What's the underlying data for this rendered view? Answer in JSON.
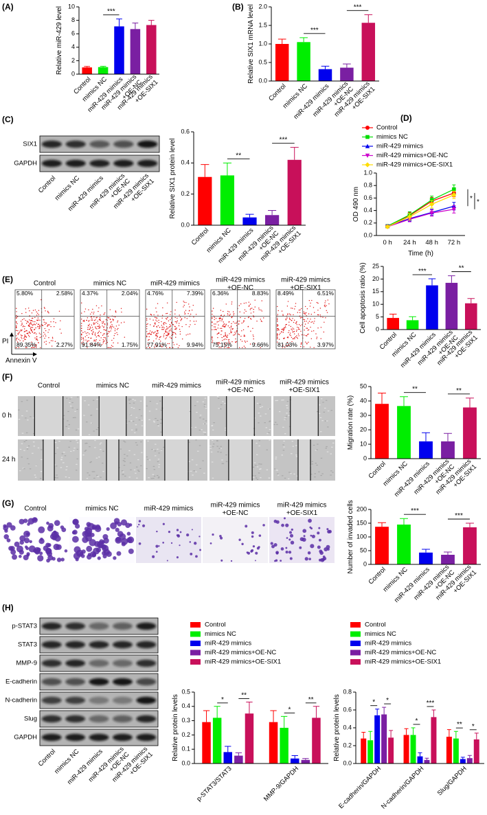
{
  "figure": {
    "panels": [
      "(A)",
      "(B)",
      "(C)",
      "(D)",
      "(E)",
      "(F)",
      "(G)",
      "(H)"
    ],
    "blot_c": {
      "rows": [
        "SIX1",
        "GAPDH"
      ],
      "lanes": [
        "Control",
        "mimics NC",
        "miR-429 mimics",
        "miR-429 mimics\n+OE-NC",
        "miR-429 mimics\n+OE-SIX1"
      ]
    },
    "flow": {
      "titles": [
        "Control",
        "mimics NC",
        "miR-429 mimics",
        "miR-429 mimics\n+OE-NC",
        "miR-429 mimics\n+OE-SIX1"
      ],
      "quadrants": [
        [
          "5.80%",
          "2.58%",
          "89.35%",
          "2.27%"
        ],
        [
          "4.37%",
          "2.04%",
          "91.84%",
          "1.75%"
        ],
        [
          "4.76%",
          "7.39%",
          "77.91%",
          "9.94%"
        ],
        [
          "6.36%",
          "8.83%",
          "75.15%",
          "9.66%"
        ],
        [
          "8.49%",
          "6.51%",
          "81.03%",
          "3.97%"
        ]
      ],
      "y_label": "PI",
      "x_label": "Annexin V"
    },
    "scratch": {
      "titles": [
        "Control",
        "mimics NC",
        "miR-429 mimics",
        "miR-429 mimics\n+OE-NC",
        "miR-429 mimics\n+OE-SIX1"
      ],
      "rows": [
        "0 h",
        "24 h"
      ]
    },
    "transwell": {
      "titles": [
        "Control",
        "mimics NC",
        "miR-429 mimics",
        "miR-429 mimics\n+OE-NC",
        "miR-429 mimics\n+OE-SIX1"
      ]
    },
    "blot_h": {
      "rows": [
        "p-STAT3",
        "STAT3",
        "MMP-9",
        "E-cadherin",
        "N-cadherin",
        "Slug",
        "GAPDH"
      ],
      "lanes": [
        "Control",
        "mimics NC",
        "miR-429 mimics",
        "miR-429 mimics\n+OE-NC",
        "miR-429 mimics\n+OE-SIX1"
      ]
    }
  },
  "chart_data": [
    {
      "type": "bar",
      "ylabel": "Relative miR-429 level",
      "categories": [
        "Control",
        "mimics NC",
        "miR-429 mimics",
        "miR-429 mimics\n+OE-NC",
        "miR-429 mimics\n+OE-SIX1"
      ],
      "values": [
        1.0,
        1.05,
        7.1,
        6.7,
        7.3
      ],
      "errors": [
        0.15,
        0.12,
        1.1,
        0.9,
        0.7
      ],
      "colors": [
        "#ff0000",
        "#00ee00",
        "#0000ee",
        "#7a1fa2",
        "#c8105a"
      ],
      "ylim": [
        0,
        10
      ],
      "yticks": [
        0,
        2,
        4,
        6,
        8,
        10
      ],
      "annotations": [
        {
          "text": "***",
          "pair": [
            1,
            2
          ]
        }
      ]
    },
    {
      "type": "bar",
      "ylabel": "Relative SIX1 mRNA level",
      "categories": [
        "Control",
        "mimics NC",
        "miR-429 mimics",
        "miR-429 mimics\n+OE-NC",
        "miR-429 mimics\n+OE-SIX1"
      ],
      "values": [
        1.0,
        1.05,
        0.32,
        0.36,
        1.57
      ],
      "errors": [
        0.13,
        0.12,
        0.08,
        0.1,
        0.22
      ],
      "colors": [
        "#ff0000",
        "#00ee00",
        "#0000ee",
        "#7a1fa2",
        "#c8105a"
      ],
      "ylim": [
        0,
        2
      ],
      "yticks": [
        {
          "value": 0,
          "label": "0.0"
        },
        0.5,
        {
          "value": 1,
          "label": "1.0"
        },
        1.5,
        {
          "value": 2,
          "label": "2.0"
        }
      ],
      "annotations": [
        {
          "text": "***",
          "pair": [
            1,
            2
          ]
        },
        {
          "text": "***",
          "pair": [
            3,
            4
          ]
        }
      ]
    },
    {
      "type": "bar",
      "ylabel": "Relative SIX1 protein level",
      "categories": [
        "Control",
        "mimics NC",
        "miR-429 mimics",
        "miR-429 mimics\n+OE-NC",
        "miR-429 mimics\n+OE-SIX1"
      ],
      "values": [
        0.31,
        0.32,
        0.05,
        0.065,
        0.42
      ],
      "errors": [
        0.08,
        0.08,
        0.02,
        0.03,
        0.08
      ],
      "colors": [
        "#ff0000",
        "#00ee00",
        "#0000ee",
        "#7a1fa2",
        "#c8105a"
      ],
      "ylim": [
        0,
        0.6
      ],
      "yticks": [
        {
          "value": 0,
          "label": "0.0"
        },
        0.2,
        0.4,
        0.6
      ],
      "annotations": [
        {
          "text": "**",
          "pair": [
            1,
            2
          ]
        },
        {
          "text": "***",
          "pair": [
            3,
            4
          ]
        }
      ]
    },
    {
      "type": "line",
      "xlabel": "Time (h)",
      "ylabel": "OD 490 nm",
      "legend": "top",
      "categories": [
        "0 h",
        "24 h",
        "48 h",
        "72 h"
      ],
      "ylim": [
        0,
        1
      ],
      "yticks": [
        {
          "value": 0,
          "label": "0.0"
        },
        0.2,
        0.4,
        0.6,
        0.8,
        {
          "value": 1,
          "label": "1.0"
        }
      ],
      "series": [
        {
          "name": "Control",
          "color": "#ff0000",
          "marker": "circle",
          "values": [
            0.15,
            0.32,
            0.55,
            0.68
          ],
          "errors": [
            0.02,
            0.05,
            0.06,
            0.06
          ]
        },
        {
          "name": "mimics NC",
          "color": "#00dd00",
          "marker": "square",
          "values": [
            0.15,
            0.33,
            0.57,
            0.74
          ],
          "errors": [
            0.02,
            0.05,
            0.06,
            0.07
          ]
        },
        {
          "name": "miR-429 mimics",
          "color": "#0000ee",
          "marker": "triangle",
          "values": [
            0.15,
            0.27,
            0.37,
            0.47
          ],
          "errors": [
            0.02,
            0.04,
            0.05,
            0.06
          ]
        },
        {
          "name": "miR-429 mimics+OE-NC",
          "color": "#cc00cc",
          "marker": "triangle-down",
          "values": [
            0.14,
            0.26,
            0.36,
            0.42
          ],
          "errors": [
            0.02,
            0.04,
            0.05,
            0.06
          ]
        },
        {
          "name": "miR-429 mimics+OE-SIX1",
          "color": "#ffdd00",
          "marker": "diamond",
          "values": [
            0.14,
            0.3,
            0.5,
            0.65
          ],
          "errors": [
            0.02,
            0.05,
            0.06,
            0.06
          ]
        }
      ],
      "annotations": [
        {
          "text": "*",
          "pair": [
            1,
            2
          ]
        },
        {
          "text": "*",
          "pair": [
            0,
            3
          ]
        }
      ]
    },
    {
      "type": "bar",
      "ylabel": "Cell apoptosis ratio (%)",
      "categories": [
        "Control",
        "mimics NC",
        "miR-429 mimics",
        "miR-429 mimics\n+OE-NC",
        "miR-429 mimics\n+OE-SIX1"
      ],
      "values": [
        4.6,
        3.7,
        17.5,
        18.5,
        10.4
      ],
      "errors": [
        1.5,
        1.4,
        2.6,
        2.8,
        1.9
      ],
      "colors": [
        "#ff0000",
        "#00ee00",
        "#0000ee",
        "#7a1fa2",
        "#c8105a"
      ],
      "ylim": [
        0,
        25
      ],
      "yticks": [
        0,
        5,
        10,
        15,
        20,
        25
      ],
      "annotations": [
        {
          "text": "***",
          "pair": [
            1,
            2
          ]
        },
        {
          "text": "**",
          "pair": [
            3,
            4
          ]
        }
      ]
    },
    {
      "type": "bar",
      "ylabel": "Migration rate (%)",
      "categories": [
        "Control",
        "mimics NC",
        "miR-429 mimics",
        "miR-429 mimics\n+OE-NC",
        "miR-429 mimics\n+OE-SIX1"
      ],
      "values": [
        38,
        36.5,
        12,
        12,
        35.5
      ],
      "errors": [
        7.5,
        6.5,
        6,
        5.5,
        6.5
      ],
      "colors": [
        "#ff0000",
        "#00ee00",
        "#0000ee",
        "#7a1fa2",
        "#c8105a"
      ],
      "ylim": [
        0,
        50
      ],
      "yticks": [
        0,
        10,
        20,
        30,
        40,
        50
      ],
      "annotations": [
        {
          "text": "**",
          "pair": [
            1,
            2
          ]
        },
        {
          "text": "**",
          "pair": [
            3,
            4
          ]
        }
      ]
    },
    {
      "type": "bar",
      "ylabel": "Number of invaded cells",
      "categories": [
        "Control",
        "mimics NC",
        "miR-429 mimics",
        "miR-429 mimics\n+OE-NC",
        "miR-429 mimics\n+OE-SIX1"
      ],
      "values": [
        137,
        145,
        43,
        35,
        135
      ],
      "errors": [
        15,
        22,
        12,
        10,
        15
      ],
      "colors": [
        "#ff0000",
        "#00ee00",
        "#0000ee",
        "#7a1fa2",
        "#c8105a"
      ],
      "ylim": [
        0,
        200
      ],
      "yticks": [
        0,
        50,
        100,
        150,
        200
      ],
      "annotations": [
        {
          "text": "***",
          "pair": [
            1,
            2
          ]
        },
        {
          "text": "***",
          "pair": [
            3,
            4
          ]
        }
      ]
    },
    {
      "type": "bar",
      "ylabel": "Relative protein levels",
      "legend": "top",
      "categories": [
        "p-STAT3/STAT3",
        "MMP-9/GAPDH"
      ],
      "ylim": [
        0,
        0.5
      ],
      "yticks": [
        {
          "value": 0,
          "label": "0.0"
        },
        0.1,
        0.2,
        0.3,
        0.4,
        0.5
      ],
      "series": [
        {
          "name": "Control",
          "color": "#ff0000",
          "values": [
            0.29,
            0.29
          ],
          "errors": [
            0.08,
            0.08
          ]
        },
        {
          "name": "mimics NC",
          "color": "#00ee00",
          "values": [
            0.32,
            0.25
          ],
          "errors": [
            0.08,
            0.08
          ]
        },
        {
          "name": "miR-429 mimics",
          "color": "#0000ee",
          "values": [
            0.08,
            0.035
          ],
          "errors": [
            0.04,
            0.02
          ]
        },
        {
          "name": "miR-429 mimics+OE-NC",
          "color": "#7a1fa2",
          "values": [
            0.055,
            0.025
          ],
          "errors": [
            0.02,
            0.01
          ]
        },
        {
          "name": "miR-429 mimics+OE-SIX1",
          "color": "#c8105a",
          "values": [
            0.35,
            0.32
          ],
          "errors": [
            0.08,
            0.08
          ]
        }
      ],
      "annotations": [
        {
          "text": "*",
          "group": 0,
          "pair": [
            1,
            2
          ]
        },
        {
          "text": "**",
          "group": 0,
          "pair": [
            3,
            4
          ]
        },
        {
          "text": "*",
          "group": 1,
          "pair": [
            1,
            2
          ]
        },
        {
          "text": "**",
          "group": 1,
          "pair": [
            3,
            4
          ]
        }
      ]
    },
    {
      "type": "bar",
      "ylabel": "Relative protein levels",
      "legend": "top",
      "categories": [
        "E-cadherin/GAPDH",
        "N-cadherin/GAPDH",
        "Slug/GAPDH"
      ],
      "ylim": [
        0,
        0.8
      ],
      "yticks": [
        {
          "value": 0,
          "label": "0.0"
        },
        0.2,
        0.4,
        0.6,
        0.8
      ],
      "series": [
        {
          "name": "Control",
          "color": "#ff0000",
          "values": [
            0.28,
            0.32,
            0.3
          ],
          "errors": [
            0.07,
            0.07,
            0.08
          ]
        },
        {
          "name": "mimics NC",
          "color": "#00ee00",
          "values": [
            0.26,
            0.32,
            0.28
          ],
          "errors": [
            0.1,
            0.08,
            0.08
          ]
        },
        {
          "name": "miR-429 mimics",
          "color": "#0000ee",
          "values": [
            0.54,
            0.08,
            0.05
          ],
          "errors": [
            0.07,
            0.04,
            0.02
          ]
        },
        {
          "name": "miR-429 mimics+OE-NC",
          "color": "#7a1fa2",
          "values": [
            0.55,
            0.04,
            0.06
          ],
          "errors": [
            0.08,
            0.02,
            0.03
          ]
        },
        {
          "name": "miR-429 mimics+OE-SIX1",
          "color": "#c8105a",
          "values": [
            0.29,
            0.52,
            0.27
          ],
          "errors": [
            0.08,
            0.08,
            0.07
          ]
        }
      ],
      "annotations": [
        {
          "text": "*",
          "group": 0,
          "pair": [
            1,
            2
          ]
        },
        {
          "text": "*",
          "group": 0,
          "pair": [
            3,
            4
          ]
        },
        {
          "text": "*",
          "group": 1,
          "pair": [
            1,
            2
          ]
        },
        {
          "text": "***",
          "group": 1,
          "pair": [
            3,
            4
          ]
        },
        {
          "text": "**",
          "group": 2,
          "pair": [
            1,
            2
          ]
        },
        {
          "text": "*",
          "group": 2,
          "pair": [
            3,
            4
          ]
        }
      ]
    }
  ]
}
